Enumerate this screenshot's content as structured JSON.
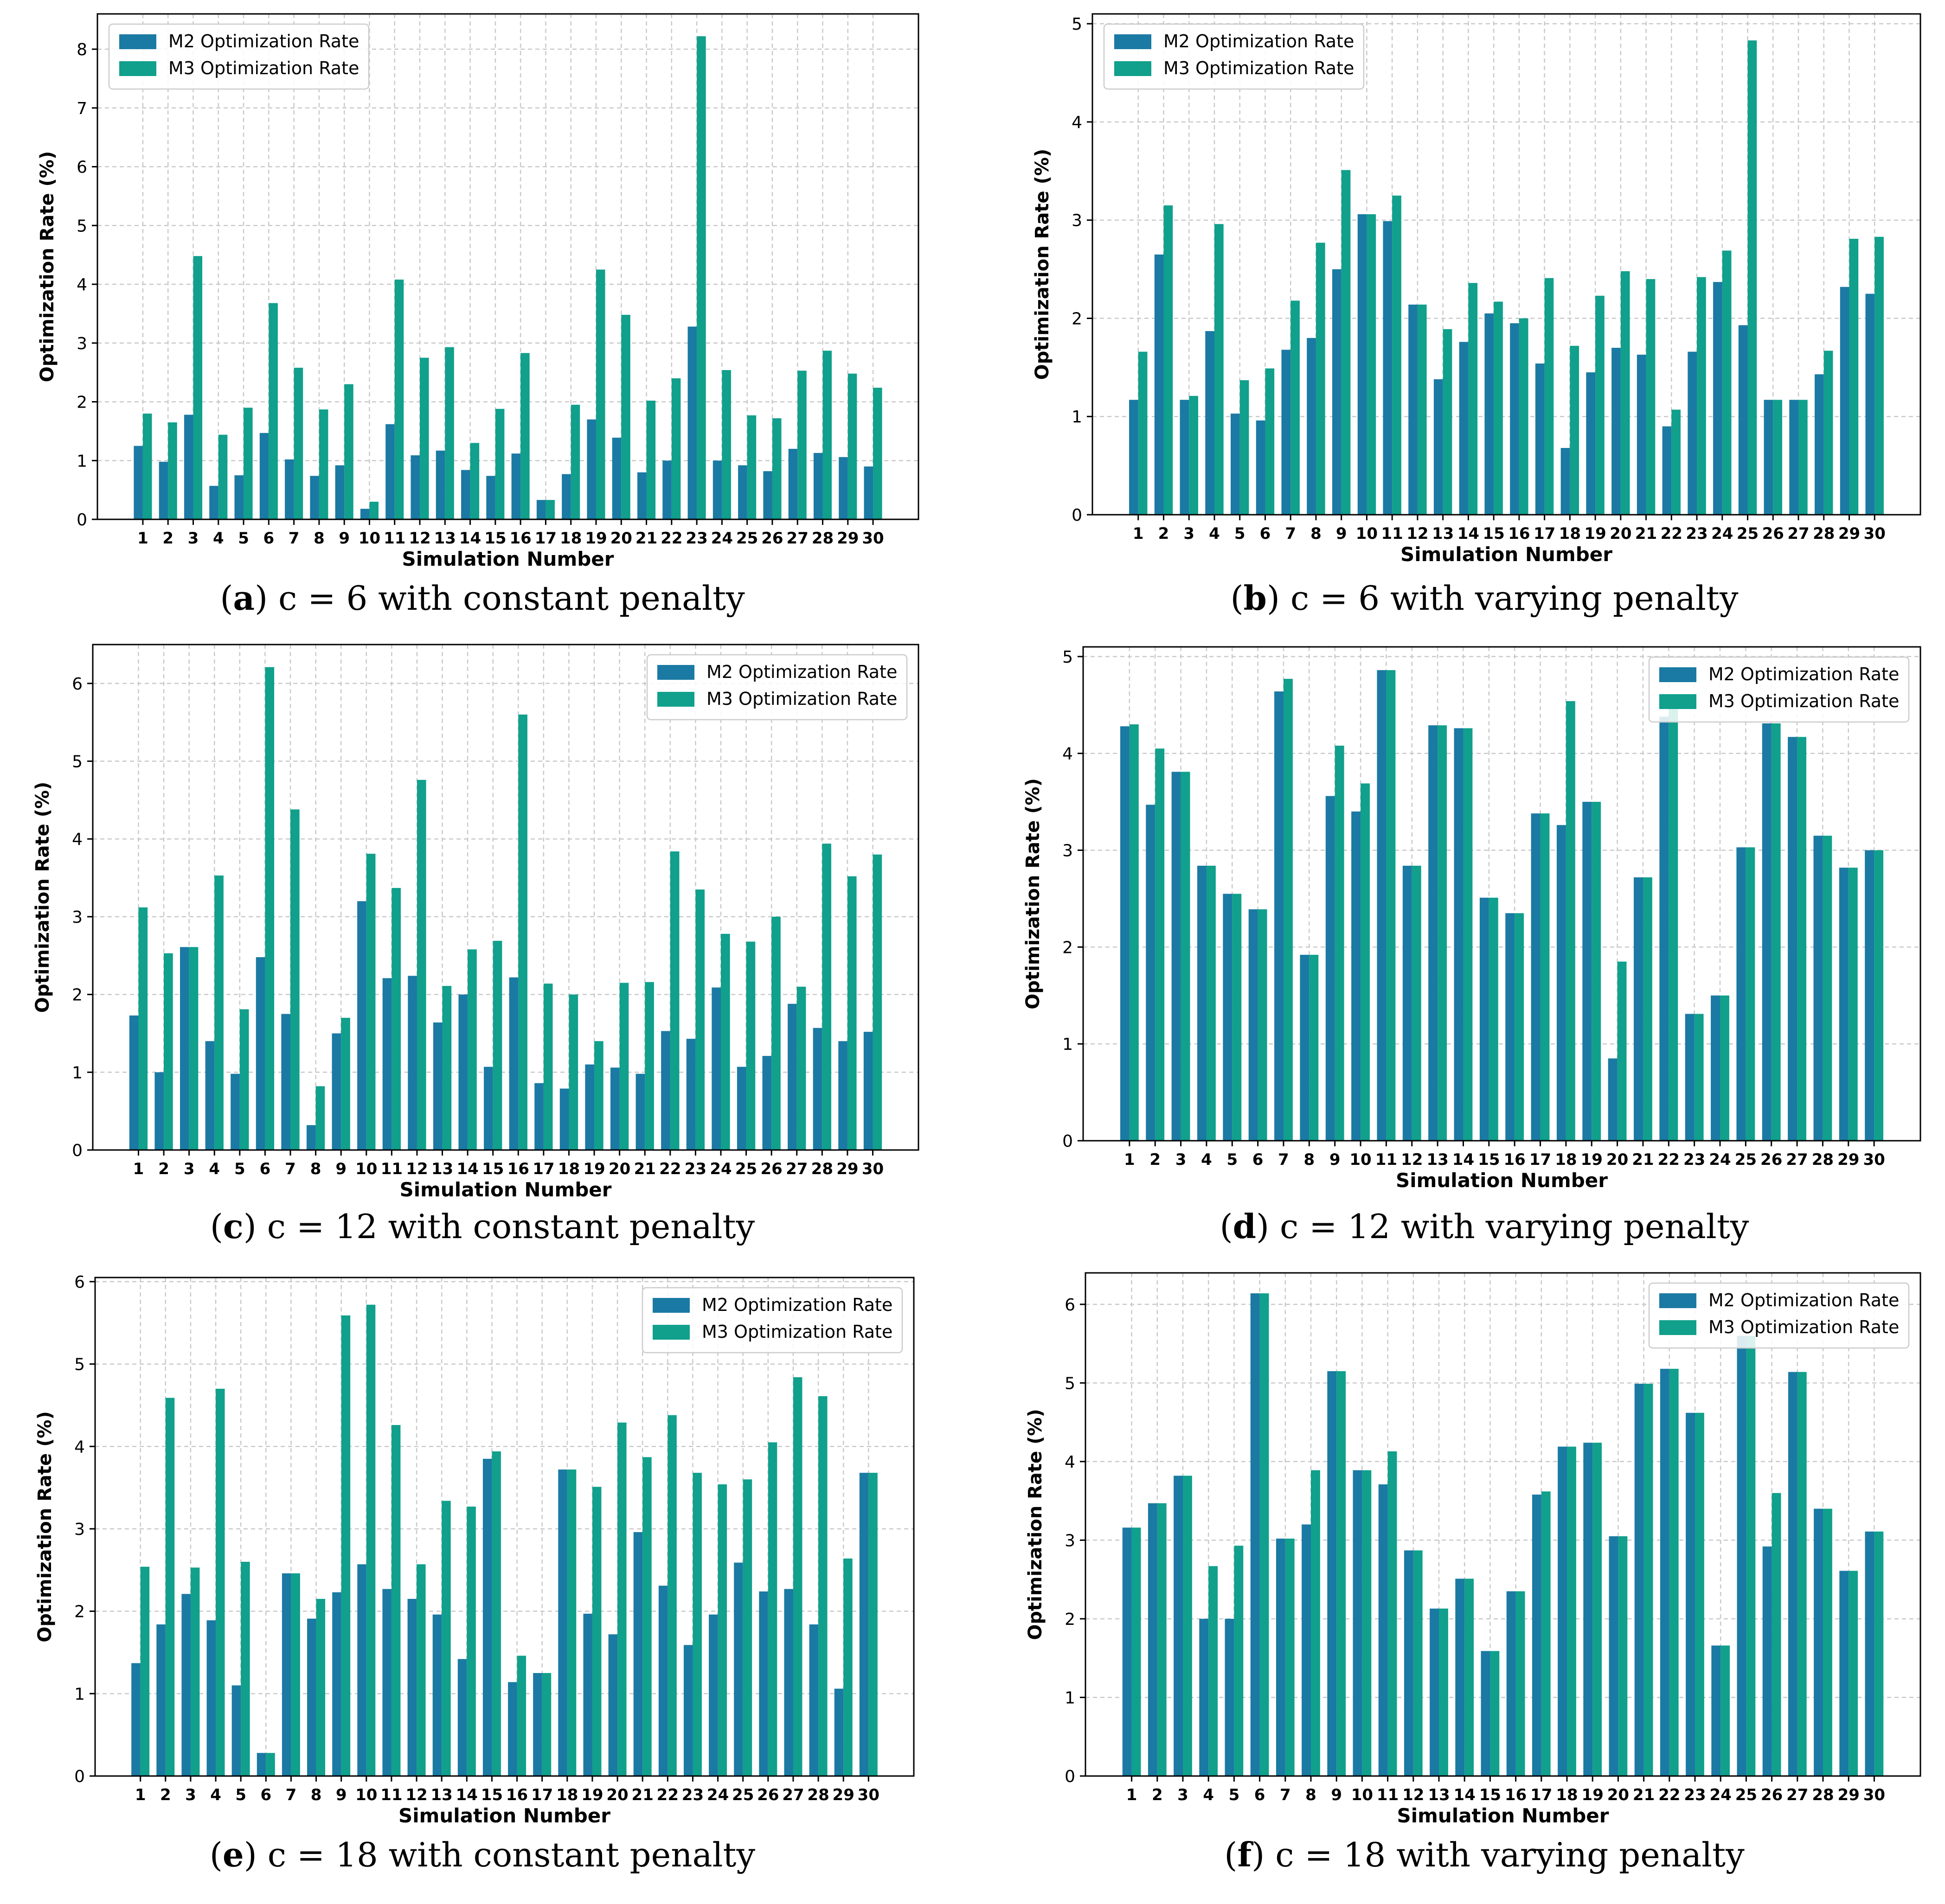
{
  "colors": {
    "m2": "#1a7aa3",
    "m3": "#10a08c",
    "grid": "#c9c9c9",
    "axis": "#000000"
  },
  "chart_data": [
    {
      "type": "bar",
      "id": "a",
      "caption": {
        "letter": "a",
        "text": "c = 6  with constant penalty"
      },
      "xlabel": "Simulation Number",
      "ylabel": "Optimization Rate (%)",
      "ylim": [
        0,
        8.6
      ],
      "yticks": [
        0,
        1,
        2,
        3,
        4,
        5,
        6,
        7,
        8
      ],
      "legend": {
        "position": "top-left",
        "labels": [
          "M2 Optimization Rate",
          "M3 Optimization Rate"
        ]
      },
      "categories": [
        "1",
        "2",
        "3",
        "4",
        "5",
        "6",
        "7",
        "8",
        "9",
        "10",
        "11",
        "12",
        "13",
        "14",
        "15",
        "16",
        "17",
        "18",
        "19",
        "20",
        "21",
        "22",
        "23",
        "24",
        "25",
        "26",
        "27",
        "28",
        "29",
        "30"
      ],
      "series": [
        {
          "name": "M2 Optimization Rate",
          "values": [
            1.25,
            0.98,
            1.78,
            0.57,
            0.75,
            1.47,
            1.02,
            0.74,
            0.92,
            0.18,
            1.62,
            1.09,
            1.17,
            0.84,
            0.74,
            1.12,
            0.33,
            0.77,
            1.7,
            1.39,
            0.8,
            1.0,
            3.28,
            1.0,
            0.92,
            0.82,
            1.2,
            1.13,
            1.06,
            0.9
          ]
        },
        {
          "name": "M3 Optimization Rate",
          "values": [
            1.8,
            1.65,
            4.48,
            1.44,
            1.9,
            3.68,
            2.58,
            1.87,
            2.3,
            0.3,
            4.08,
            2.75,
            2.93,
            1.3,
            1.88,
            2.83,
            0.33,
            1.95,
            4.25,
            3.48,
            2.02,
            2.4,
            8.22,
            2.54,
            1.77,
            1.72,
            2.53,
            2.87,
            2.48,
            2.24
          ]
        }
      ],
      "grid": true
    },
    {
      "type": "bar",
      "id": "b",
      "caption": {
        "letter": "b",
        "text": "c = 6  with varying penalty"
      },
      "xlabel": "Simulation Number",
      "ylabel": "Optimization Rate (%)",
      "ylim": [
        0,
        5.1
      ],
      "yticks": [
        0,
        1,
        2,
        3,
        4,
        5
      ],
      "legend": {
        "position": "top-left",
        "labels": [
          "M2 Optimization Rate",
          "M3 Optimization Rate"
        ]
      },
      "categories": [
        "1",
        "2",
        "3",
        "4",
        "5",
        "6",
        "7",
        "8",
        "9",
        "10",
        "11",
        "12",
        "13",
        "14",
        "15",
        "16",
        "17",
        "18",
        "19",
        "20",
        "21",
        "22",
        "23",
        "24",
        "25",
        "26",
        "27",
        "28",
        "29",
        "30"
      ],
      "series": [
        {
          "name": "M2 Optimization Rate",
          "values": [
            1.17,
            2.65,
            1.17,
            1.87,
            1.03,
            0.96,
            1.68,
            1.8,
            2.5,
            3.06,
            2.99,
            2.14,
            1.38,
            1.76,
            2.05,
            1.95,
            1.54,
            0.68,
            1.45,
            1.7,
            1.63,
            0.9,
            1.66,
            2.37,
            1.93,
            1.17,
            1.17,
            1.43,
            2.32,
            2.25
          ]
        },
        {
          "name": "M3 Optimization Rate",
          "values": [
            1.66,
            3.15,
            1.21,
            2.96,
            1.37,
            1.49,
            2.18,
            2.77,
            3.51,
            3.06,
            3.25,
            2.14,
            1.89,
            2.36,
            2.17,
            2.0,
            2.41,
            1.72,
            2.23,
            2.48,
            2.4,
            1.07,
            2.42,
            2.69,
            4.83,
            1.17,
            1.17,
            1.67,
            2.81,
            2.83
          ]
        }
      ],
      "grid": true
    },
    {
      "type": "bar",
      "id": "c",
      "caption": {
        "letter": "c",
        "text": "c = 12  with constant penalty"
      },
      "xlabel": "Simulation Number",
      "ylabel": "Optimization Rate (%)",
      "ylim": [
        0,
        6.5
      ],
      "yticks": [
        0,
        1,
        2,
        3,
        4,
        5,
        6
      ],
      "legend": {
        "position": "top-right",
        "labels": [
          "M2 Optimization Rate",
          "M3 Optimization Rate"
        ]
      },
      "categories": [
        "1",
        "2",
        "3",
        "4",
        "5",
        "6",
        "7",
        "8",
        "9",
        "10",
        "11",
        "12",
        "13",
        "14",
        "15",
        "16",
        "17",
        "18",
        "19",
        "20",
        "21",
        "22",
        "23",
        "24",
        "25",
        "26",
        "27",
        "28",
        "29",
        "30"
      ],
      "series": [
        {
          "name": "M2 Optimization Rate",
          "values": [
            1.73,
            1.0,
            2.61,
            1.4,
            0.98,
            2.48,
            1.75,
            0.32,
            1.5,
            3.2,
            2.21,
            2.24,
            1.64,
            2.0,
            1.07,
            2.22,
            0.86,
            0.79,
            1.1,
            1.06,
            0.98,
            1.53,
            1.43,
            2.09,
            1.07,
            1.21,
            1.88,
            1.57,
            1.4,
            1.52
          ]
        },
        {
          "name": "M3 Optimization Rate",
          "values": [
            3.12,
            2.53,
            2.61,
            3.53,
            1.81,
            6.21,
            4.38,
            0.82,
            1.7,
            3.81,
            3.37,
            4.76,
            2.11,
            2.58,
            2.69,
            5.6,
            2.14,
            2.0,
            1.4,
            2.15,
            2.16,
            3.84,
            3.35,
            2.78,
            2.68,
            3.0,
            2.1,
            3.94,
            3.52,
            3.8
          ]
        }
      ],
      "grid": true
    },
    {
      "type": "bar",
      "id": "d",
      "caption": {
        "letter": "d",
        "text": "c = 12  with varying penalty"
      },
      "xlabel": "Simulation Number",
      "ylabel": "Optimization Rate (%)",
      "ylim": [
        0,
        5.1
      ],
      "yticks": [
        0,
        1,
        2,
        3,
        4,
        5
      ],
      "legend": {
        "position": "top-right",
        "labels": [
          "M2 Optimization Rate",
          "M3 Optimization Rate"
        ]
      },
      "categories": [
        "1",
        "2",
        "3",
        "4",
        "5",
        "6",
        "7",
        "8",
        "9",
        "10",
        "11",
        "12",
        "13",
        "14",
        "15",
        "16",
        "17",
        "18",
        "19",
        "20",
        "21",
        "22",
        "23",
        "24",
        "25",
        "26",
        "27",
        "28",
        "29",
        "30"
      ],
      "series": [
        {
          "name": "M2 Optimization Rate",
          "values": [
            4.28,
            3.47,
            3.81,
            2.84,
            2.55,
            2.39,
            4.64,
            1.92,
            3.56,
            3.4,
            4.86,
            2.84,
            4.29,
            4.26,
            2.51,
            2.35,
            3.38,
            3.26,
            3.5,
            0.85,
            2.72,
            4.38,
            1.31,
            1.5,
            3.03,
            4.31,
            4.17,
            3.15,
            2.82,
            3.0
          ]
        },
        {
          "name": "M3 Optimization Rate",
          "values": [
            4.3,
            4.05,
            3.81,
            2.84,
            2.55,
            2.39,
            4.77,
            1.92,
            4.08,
            3.69,
            4.86,
            2.84,
            4.29,
            4.26,
            2.51,
            2.35,
            3.38,
            4.54,
            3.5,
            1.85,
            2.72,
            4.5,
            1.31,
            1.5,
            3.03,
            4.31,
            4.17,
            3.15,
            2.82,
            3.0
          ]
        }
      ],
      "grid": true
    },
    {
      "type": "bar",
      "id": "e",
      "caption": {
        "letter": "e",
        "text": "c = 18  with constant penalty"
      },
      "xlabel": "Simulation Number",
      "ylabel": "Optimization Rate (%)",
      "ylim": [
        0,
        6.05
      ],
      "yticks": [
        0,
        1,
        2,
        3,
        4,
        5,
        6
      ],
      "legend": {
        "position": "top-right",
        "labels": [
          "M2 Optimization Rate",
          "M3 Optimization Rate"
        ]
      },
      "categories": [
        "1",
        "2",
        "3",
        "4",
        "5",
        "6",
        "7",
        "8",
        "9",
        "10",
        "11",
        "12",
        "13",
        "14",
        "15",
        "16",
        "17",
        "18",
        "19",
        "20",
        "21",
        "22",
        "23",
        "24",
        "25",
        "26",
        "27",
        "28",
        "29",
        "30"
      ],
      "series": [
        {
          "name": "M2 Optimization Rate",
          "values": [
            1.37,
            1.84,
            2.21,
            1.89,
            1.1,
            0.28,
            2.46,
            1.91,
            2.23,
            2.57,
            2.27,
            2.15,
            1.96,
            1.42,
            3.85,
            1.14,
            1.25,
            3.72,
            1.97,
            1.72,
            2.96,
            2.31,
            1.59,
            1.96,
            2.59,
            2.24,
            2.27,
            1.84,
            1.06,
            3.68
          ]
        },
        {
          "name": "M3 Optimization Rate",
          "values": [
            2.54,
            4.59,
            2.53,
            4.7,
            2.6,
            0.28,
            2.46,
            2.15,
            5.59,
            5.72,
            4.26,
            2.57,
            3.34,
            3.27,
            3.94,
            1.46,
            1.25,
            3.72,
            3.51,
            4.29,
            3.87,
            4.38,
            3.68,
            3.54,
            3.6,
            4.05,
            4.84,
            4.61,
            2.64,
            3.68
          ]
        }
      ],
      "grid": true
    },
    {
      "type": "bar",
      "id": "f",
      "caption": {
        "letter": "f",
        "text": "c = 18  with varying penalty"
      },
      "xlabel": "Simulation Number",
      "ylabel": "Optimization Rate (%)",
      "ylim": [
        0,
        6.4
      ],
      "yticks": [
        0,
        1,
        2,
        3,
        4,
        5,
        6
      ],
      "legend": {
        "position": "top-right",
        "labels": [
          "M2 Optimization Rate",
          "M3 Optimization Rate"
        ]
      },
      "categories": [
        "1",
        "2",
        "3",
        "4",
        "5",
        "6",
        "7",
        "8",
        "9",
        "10",
        "11",
        "12",
        "13",
        "14",
        "15",
        "16",
        "17",
        "18",
        "19",
        "20",
        "21",
        "22",
        "23",
        "24",
        "25",
        "26",
        "27",
        "28",
        "29",
        "30"
      ],
      "series": [
        {
          "name": "M2 Optimization Rate",
          "values": [
            3.16,
            3.47,
            3.82,
            2.0,
            2.0,
            6.14,
            3.02,
            3.2,
            5.15,
            3.89,
            3.71,
            2.87,
            2.13,
            2.51,
            1.59,
            2.35,
            3.58,
            4.19,
            4.24,
            3.05,
            4.99,
            5.18,
            4.62,
            1.66,
            5.6,
            2.92,
            5.14,
            3.4,
            2.61,
            3.11
          ]
        },
        {
          "name": "M3 Optimization Rate",
          "values": [
            3.16,
            3.47,
            3.82,
            2.67,
            2.93,
            6.14,
            3.02,
            3.89,
            5.15,
            3.89,
            4.13,
            2.87,
            2.13,
            2.51,
            1.59,
            2.35,
            3.62,
            4.19,
            4.24,
            3.05,
            4.99,
            5.18,
            4.62,
            1.66,
            5.6,
            3.6,
            5.14,
            3.4,
            2.61,
            3.11
          ]
        }
      ],
      "grid": true
    }
  ]
}
